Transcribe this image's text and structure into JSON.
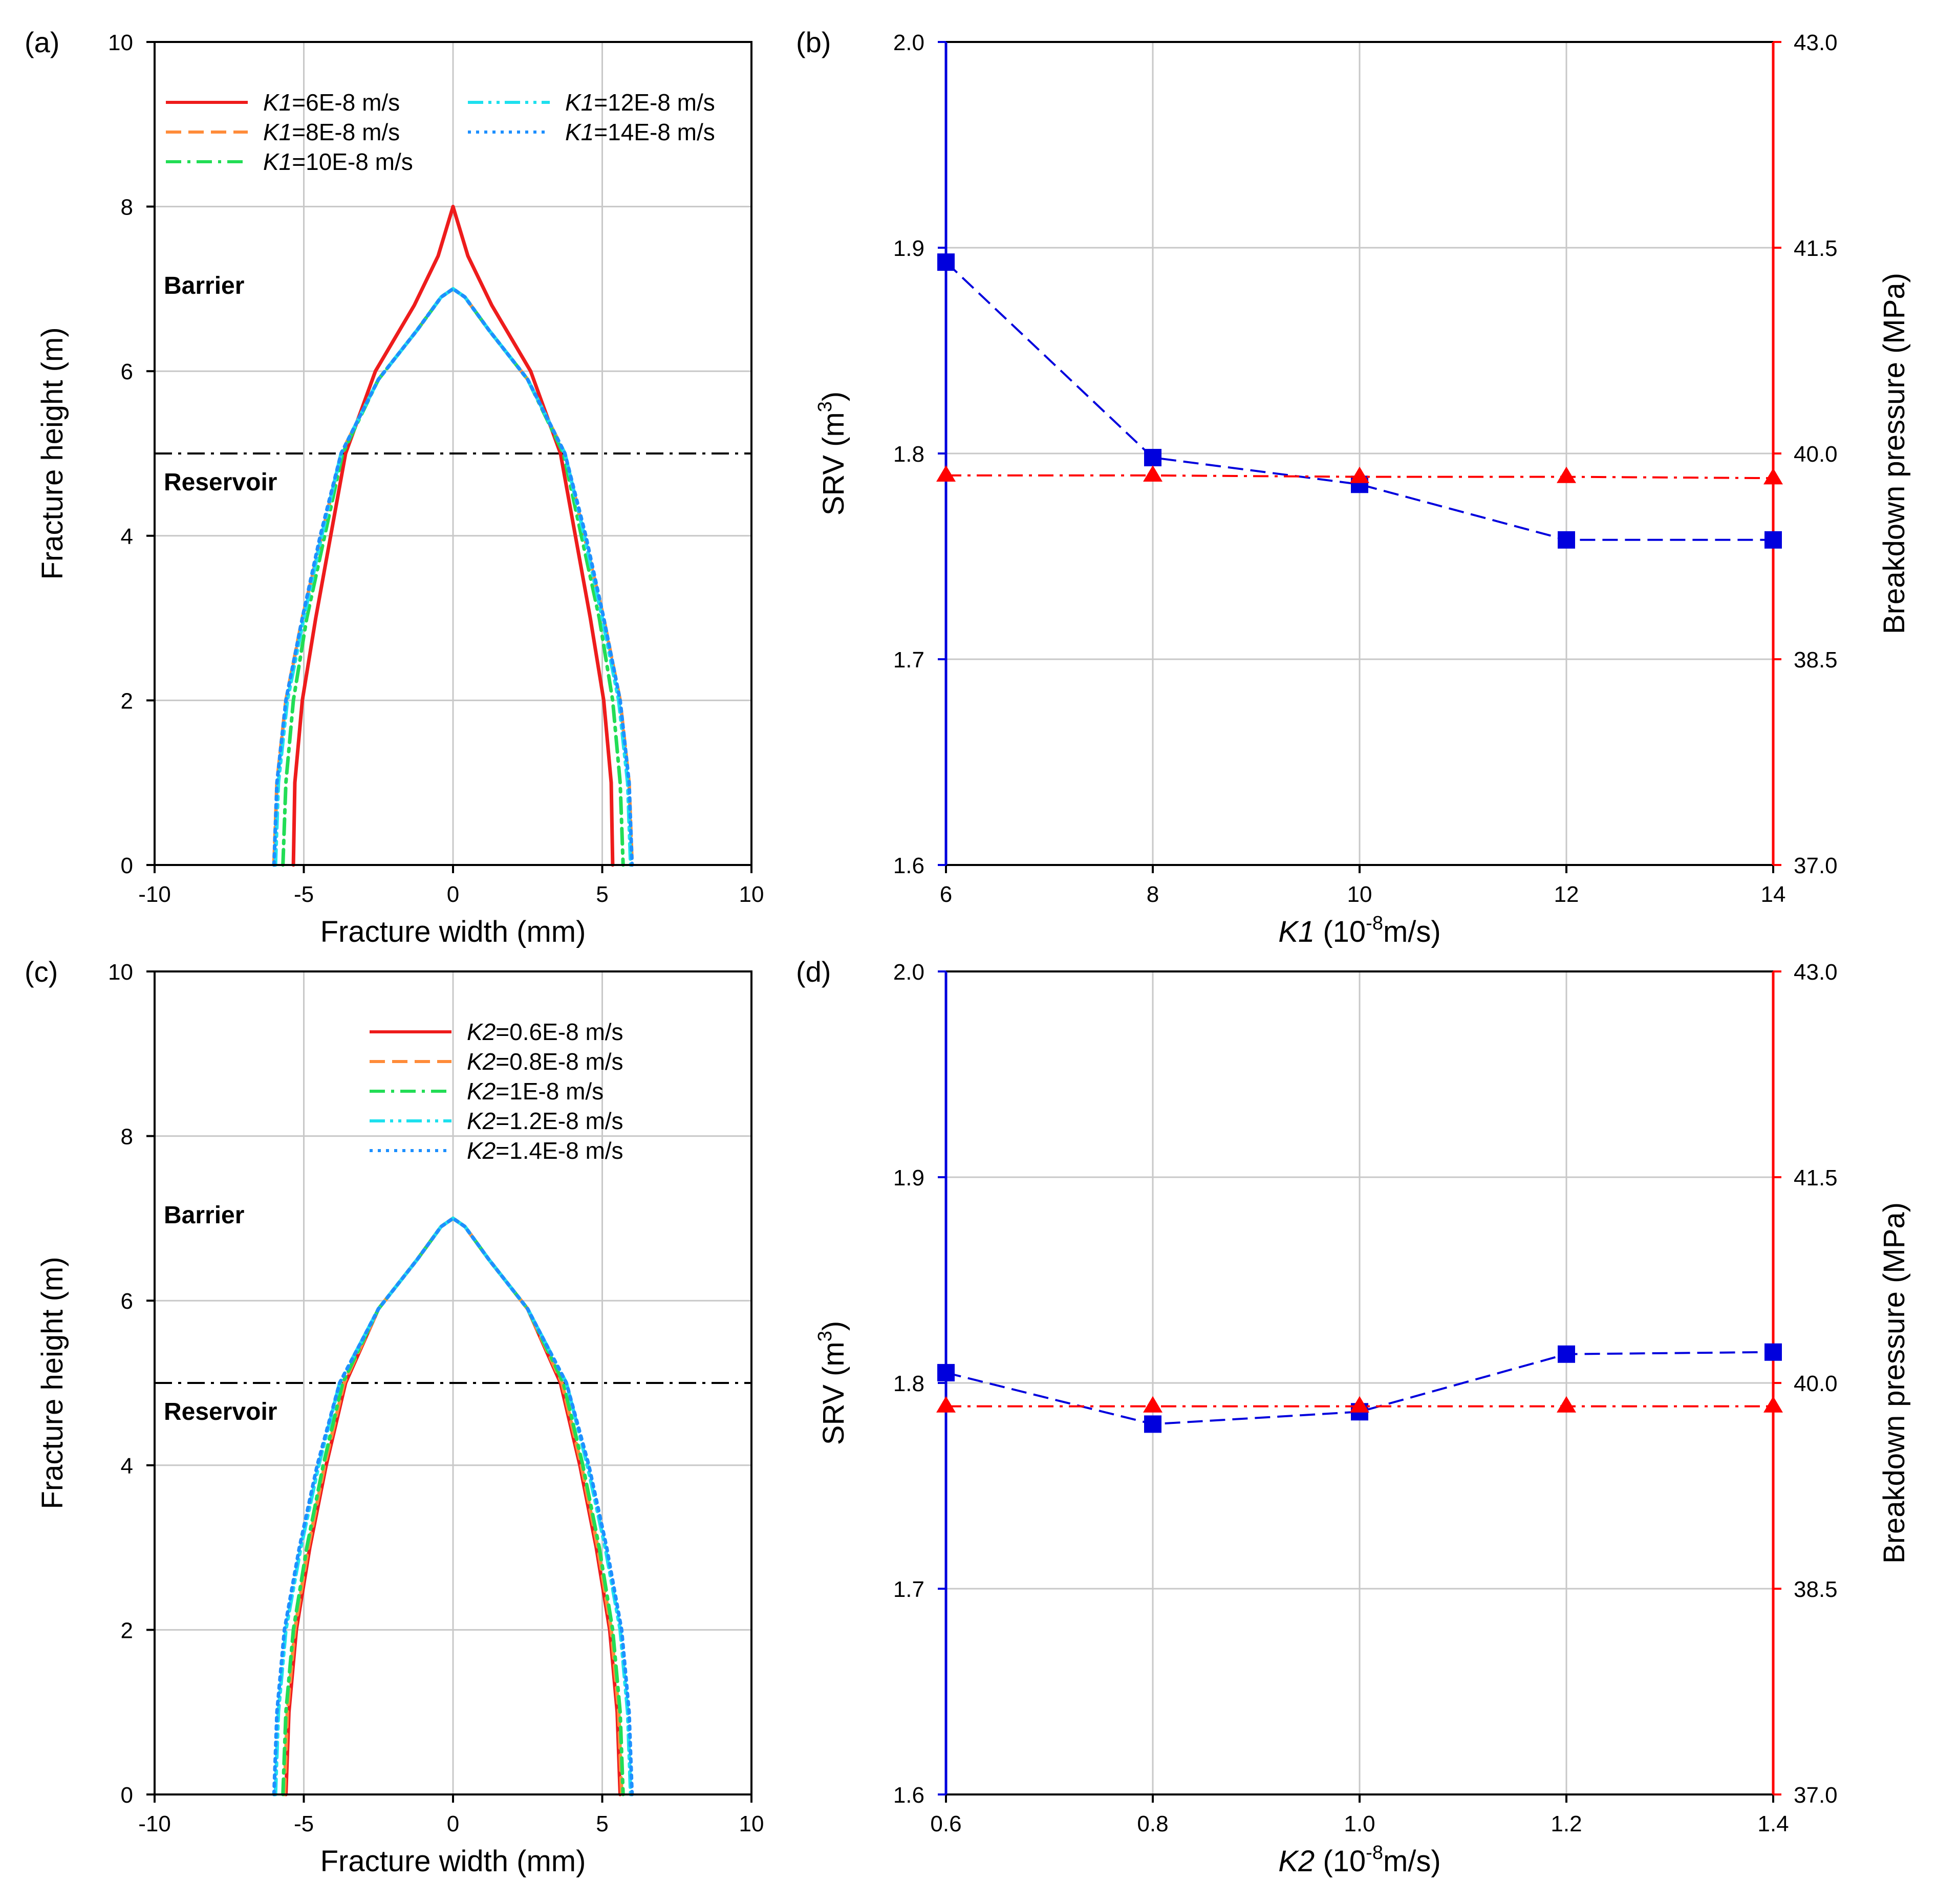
{
  "colors": {
    "srv": "#0000dd",
    "breakdown": "#ff0000",
    "grid": "#c8c8c8",
    "frame": "#000000"
  },
  "chart_data": [
    {
      "id": "a",
      "panel_label": "(a)",
      "type": "line",
      "xlabel": "Fracture width (mm)",
      "ylabel": "Fracture height (m)",
      "xlim": [
        -10,
        10
      ],
      "ylim": [
        0,
        10
      ],
      "xticks": [
        "-10",
        "-5",
        "0",
        "5",
        "10"
      ],
      "yticks": [
        "0",
        "2",
        "4",
        "6",
        "8",
        "10"
      ],
      "grid": true,
      "annotations": {
        "barrier": "Barrier",
        "reservoir": "Reservoir",
        "interface_y": 5
      },
      "legend": {
        "prefix": "K1",
        "placement": "top",
        "entries": [
          {
            "label": "=6E-8 m/s",
            "color": "#ee1c1c",
            "dash": "solid"
          },
          {
            "label": "=8E-8 m/s",
            "color": "#ff8c3a",
            "dash": "long-dash"
          },
          {
            "label": "=10E-8 m/s",
            "color": "#22dd55",
            "dash": "dash-dot"
          },
          {
            "label": "=12E-8 m/s",
            "color": "#1ee0ee",
            "dash": "dash-dot-dot"
          },
          {
            "label": "=14E-8 m/s",
            "color": "#1e90ff",
            "dash": "dotted"
          }
        ]
      },
      "series": [
        {
          "name": "K1=6E-8 m/s",
          "color": "#ee1c1c",
          "dash": "solid",
          "points": [
            [
              -5.35,
              0
            ],
            [
              -5.3,
              1
            ],
            [
              -5.05,
              2
            ],
            [
              -4.6,
              3
            ],
            [
              -4.1,
              4
            ],
            [
              -3.6,
              5
            ],
            [
              -2.6,
              6
            ],
            [
              -1.3,
              6.8
            ],
            [
              -0.5,
              7.4
            ],
            [
              0,
              8
            ],
            [
              0.5,
              7.4
            ],
            [
              1.3,
              6.8
            ],
            [
              2.6,
              6
            ],
            [
              3.6,
              5
            ],
            [
              4.1,
              4
            ],
            [
              4.6,
              3
            ],
            [
              5.05,
              2
            ],
            [
              5.3,
              1
            ],
            [
              5.35,
              0
            ]
          ]
        },
        {
          "name": "K1=8E-8 m/s",
          "color": "#ff8c3a",
          "dash": "long-dash",
          "points": [
            [
              -6.0,
              0
            ],
            [
              -5.9,
              1
            ],
            [
              -5.6,
              2
            ],
            [
              -5.05,
              3
            ],
            [
              -4.4,
              4
            ],
            [
              -3.75,
              5
            ],
            [
              -2.5,
              5.9
            ],
            [
              -1.2,
              6.5
            ],
            [
              -0.4,
              6.9
            ],
            [
              0,
              7
            ],
            [
              0.4,
              6.9
            ],
            [
              1.2,
              6.5
            ],
            [
              2.5,
              5.9
            ],
            [
              3.75,
              5
            ],
            [
              4.4,
              4
            ],
            [
              5.05,
              3
            ],
            [
              5.6,
              2
            ],
            [
              5.9,
              1
            ],
            [
              6.0,
              0
            ]
          ]
        },
        {
          "name": "K1=10E-8 m/s",
          "color": "#22dd55",
          "dash": "dash-dot",
          "points": [
            [
              -5.7,
              0
            ],
            [
              -5.6,
              1
            ],
            [
              -5.35,
              2
            ],
            [
              -4.9,
              3
            ],
            [
              -4.3,
              4
            ],
            [
              -3.7,
              5
            ],
            [
              -2.5,
              5.9
            ],
            [
              -1.2,
              6.5
            ],
            [
              -0.4,
              6.9
            ],
            [
              0,
              7
            ],
            [
              0.4,
              6.9
            ],
            [
              1.2,
              6.5
            ],
            [
              2.5,
              5.9
            ],
            [
              3.7,
              5
            ],
            [
              4.3,
              4
            ],
            [
              4.9,
              3
            ],
            [
              5.35,
              2
            ],
            [
              5.6,
              1
            ],
            [
              5.7,
              0
            ]
          ]
        },
        {
          "name": "K1=12E-8 m/s",
          "color": "#1ee0ee",
          "dash": "dash-dot-dot",
          "points": [
            [
              -5.95,
              0
            ],
            [
              -5.85,
              1
            ],
            [
              -5.55,
              2
            ],
            [
              -5.0,
              3
            ],
            [
              -4.4,
              4
            ],
            [
              -3.75,
              5
            ],
            [
              -2.5,
              5.9
            ],
            [
              -1.2,
              6.5
            ],
            [
              -0.4,
              6.9
            ],
            [
              0,
              7
            ],
            [
              0.4,
              6.9
            ],
            [
              1.2,
              6.5
            ],
            [
              2.5,
              5.9
            ],
            [
              3.75,
              5
            ],
            [
              4.4,
              4
            ],
            [
              5.0,
              3
            ],
            [
              5.55,
              2
            ],
            [
              5.85,
              1
            ],
            [
              5.95,
              0
            ]
          ]
        },
        {
          "name": "K1=14E-8 m/s",
          "color": "#1e90ff",
          "dash": "dotted",
          "points": [
            [
              -6.0,
              0
            ],
            [
              -5.9,
              1
            ],
            [
              -5.6,
              2
            ],
            [
              -5.05,
              3
            ],
            [
              -4.45,
              4
            ],
            [
              -3.75,
              5
            ],
            [
              -2.5,
              5.9
            ],
            [
              -1.2,
              6.5
            ],
            [
              -0.4,
              6.9
            ],
            [
              0,
              7
            ],
            [
              0.4,
              6.9
            ],
            [
              1.2,
              6.5
            ],
            [
              2.5,
              5.9
            ],
            [
              3.75,
              5
            ],
            [
              4.45,
              4
            ],
            [
              5.05,
              3
            ],
            [
              5.6,
              2
            ],
            [
              5.9,
              1
            ],
            [
              6.0,
              0
            ]
          ]
        }
      ]
    },
    {
      "id": "b",
      "panel_label": "(b)",
      "type": "line",
      "xlabel_main": "K1",
      "xlabel_rest": " (10",
      "xlabel_sup": "-8",
      "xlabel_end": "m/s)",
      "ylabel_left": "SRV (m",
      "ylabel_left_sup": "3",
      "ylabel_left_end": ")",
      "ylabel_right": "Breakdown pressure (MPa)",
      "x": [
        6,
        8,
        10,
        12,
        14
      ],
      "xlim": [
        6,
        14
      ],
      "xticks": [
        "6",
        "8",
        "10",
        "12",
        "14"
      ],
      "ylim_left": [
        1.6,
        2.0
      ],
      "yticks_left": [
        "1.6",
        "1.7",
        "1.8",
        "1.9",
        "2.0"
      ],
      "ylim_right": [
        37.0,
        43.0
      ],
      "yticks_right": [
        "37.0",
        "38.5",
        "40.0",
        "41.5",
        "43.0"
      ],
      "grid": true,
      "series": [
        {
          "name": "SRV",
          "axis": "left",
          "marker": "square",
          "color": "#0000dd",
          "dash": "long-dash",
          "values": [
            1.893,
            1.798,
            1.785,
            1.758,
            1.758
          ]
        },
        {
          "name": "Breakdown pressure",
          "axis": "right",
          "marker": "triangle",
          "color": "#ff0000",
          "dash": "dash-dot",
          "values": [
            39.84,
            39.84,
            39.83,
            39.83,
            39.82
          ]
        }
      ]
    },
    {
      "id": "c",
      "panel_label": "(c)",
      "type": "line",
      "xlabel": "Fracture width (mm)",
      "ylabel": "Fracture height (m)",
      "xlim": [
        -10,
        10
      ],
      "ylim": [
        0,
        10
      ],
      "xticks": [
        "-10",
        "-5",
        "0",
        "5",
        "10"
      ],
      "yticks": [
        "0",
        "2",
        "4",
        "6",
        "8",
        "10"
      ],
      "grid": true,
      "annotations": {
        "barrier": "Barrier",
        "reservoir": "Reservoir",
        "interface_y": 5
      },
      "legend": {
        "prefix": "K2",
        "placement": "top-right",
        "entries": [
          {
            "label": "=0.6E-8 m/s",
            "color": "#ee1c1c",
            "dash": "solid"
          },
          {
            "label": "=0.8E-8 m/s",
            "color": "#ff8c3a",
            "dash": "long-dash"
          },
          {
            "label": "=1E-8 m/s",
            "color": "#22dd55",
            "dash": "dash-dot"
          },
          {
            "label": "=1.2E-8 m/s",
            "color": "#1ee0ee",
            "dash": "dash-dot-dot"
          },
          {
            "label": "=1.4E-8 m/s",
            "color": "#1e90ff",
            "dash": "dotted"
          }
        ]
      },
      "series": [
        {
          "name": "K2=0.6E-8 m/s",
          "color": "#ee1c1c",
          "dash": "solid",
          "points": [
            [
              -5.6,
              0
            ],
            [
              -5.5,
              1
            ],
            [
              -5.25,
              2
            ],
            [
              -4.8,
              3
            ],
            [
              -4.25,
              4
            ],
            [
              -3.6,
              5
            ],
            [
              -2.5,
              5.9
            ],
            [
              -1.2,
              6.5
            ],
            [
              -0.4,
              6.9
            ],
            [
              0,
              7
            ],
            [
              0.4,
              6.9
            ],
            [
              1.2,
              6.5
            ],
            [
              2.5,
              5.9
            ],
            [
              3.6,
              5
            ],
            [
              4.25,
              4
            ],
            [
              4.8,
              3
            ],
            [
              5.25,
              2
            ],
            [
              5.5,
              1
            ],
            [
              5.6,
              0
            ]
          ]
        },
        {
          "name": "K2=0.8E-8 m/s",
          "color": "#ff8c3a",
          "dash": "long-dash",
          "points": [
            [
              -5.65,
              0
            ],
            [
              -5.55,
              1
            ],
            [
              -5.3,
              2
            ],
            [
              -4.85,
              3
            ],
            [
              -4.3,
              4
            ],
            [
              -3.65,
              5
            ],
            [
              -2.5,
              5.9
            ],
            [
              -1.2,
              6.5
            ],
            [
              -0.4,
              6.9
            ],
            [
              0,
              7
            ],
            [
              0.4,
              6.9
            ],
            [
              1.2,
              6.5
            ],
            [
              2.5,
              5.9
            ],
            [
              3.65,
              5
            ],
            [
              4.3,
              4
            ],
            [
              4.85,
              3
            ],
            [
              5.3,
              2
            ],
            [
              5.55,
              1
            ],
            [
              5.65,
              0
            ]
          ]
        },
        {
          "name": "K2=1E-8 m/s",
          "color": "#22dd55",
          "dash": "dash-dot",
          "points": [
            [
              -5.7,
              0
            ],
            [
              -5.6,
              1
            ],
            [
              -5.35,
              2
            ],
            [
              -4.9,
              3
            ],
            [
              -4.35,
              4
            ],
            [
              -3.7,
              5
            ],
            [
              -2.5,
              5.9
            ],
            [
              -1.2,
              6.5
            ],
            [
              -0.4,
              6.9
            ],
            [
              0,
              7
            ],
            [
              0.4,
              6.9
            ],
            [
              1.2,
              6.5
            ],
            [
              2.5,
              5.9
            ],
            [
              3.7,
              5
            ],
            [
              4.35,
              4
            ],
            [
              4.9,
              3
            ],
            [
              5.35,
              2
            ],
            [
              5.6,
              1
            ],
            [
              5.7,
              0
            ]
          ]
        },
        {
          "name": "K2=1.2E-8 m/s",
          "color": "#1ee0ee",
          "dash": "dash-dot-dot",
          "points": [
            [
              -5.95,
              0
            ],
            [
              -5.85,
              1
            ],
            [
              -5.6,
              2
            ],
            [
              -5.1,
              3
            ],
            [
              -4.5,
              4
            ],
            [
              -3.8,
              5
            ],
            [
              -2.5,
              5.9
            ],
            [
              -1.2,
              6.5
            ],
            [
              -0.4,
              6.9
            ],
            [
              0,
              7
            ],
            [
              0.4,
              6.9
            ],
            [
              1.2,
              6.5
            ],
            [
              2.5,
              5.9
            ],
            [
              3.8,
              5
            ],
            [
              4.5,
              4
            ],
            [
              5.1,
              3
            ],
            [
              5.6,
              2
            ],
            [
              5.85,
              1
            ],
            [
              5.95,
              0
            ]
          ]
        },
        {
          "name": "K2=1.4E-8 m/s",
          "color": "#1e90ff",
          "dash": "dotted",
          "points": [
            [
              -6.0,
              0
            ],
            [
              -5.9,
              1
            ],
            [
              -5.65,
              2
            ],
            [
              -5.15,
              3
            ],
            [
              -4.55,
              4
            ],
            [
              -3.8,
              5
            ],
            [
              -2.5,
              5.9
            ],
            [
              -1.2,
              6.5
            ],
            [
              -0.4,
              6.9
            ],
            [
              0,
              7
            ],
            [
              0.4,
              6.9
            ],
            [
              1.2,
              6.5
            ],
            [
              2.5,
              5.9
            ],
            [
              3.8,
              5
            ],
            [
              4.55,
              4
            ],
            [
              5.15,
              3
            ],
            [
              5.65,
              2
            ],
            [
              5.9,
              1
            ],
            [
              6.0,
              0
            ]
          ]
        }
      ]
    },
    {
      "id": "d",
      "panel_label": "(d)",
      "type": "line",
      "xlabel_main": "K2",
      "xlabel_rest": " (10",
      "xlabel_sup": "-8",
      "xlabel_end": "m/s)",
      "ylabel_left": "SRV (m",
      "ylabel_left_sup": "3",
      "ylabel_left_end": ")",
      "ylabel_right": "Breakdown pressure (MPa)",
      "x": [
        0.6,
        0.8,
        1.0,
        1.2,
        1.4
      ],
      "xlim": [
        0.6,
        1.4
      ],
      "xticks": [
        "0.6",
        "0.8",
        "1.0",
        "1.2",
        "1.4"
      ],
      "ylim_left": [
        1.6,
        2.0
      ],
      "yticks_left": [
        "1.6",
        "1.7",
        "1.8",
        "1.9",
        "2.0"
      ],
      "ylim_right": [
        37.0,
        43.0
      ],
      "yticks_right": [
        "37.0",
        "38.5",
        "40.0",
        "41.5",
        "43.0"
      ],
      "grid": true,
      "series": [
        {
          "name": "SRV",
          "axis": "left",
          "marker": "square",
          "color": "#0000dd",
          "dash": "long-dash",
          "values": [
            1.805,
            1.78,
            1.786,
            1.814,
            1.815
          ]
        },
        {
          "name": "Breakdown pressure",
          "axis": "right",
          "marker": "triangle",
          "color": "#ff0000",
          "dash": "dash-dot",
          "values": [
            39.83,
            39.83,
            39.83,
            39.83,
            39.83
          ]
        }
      ]
    }
  ]
}
